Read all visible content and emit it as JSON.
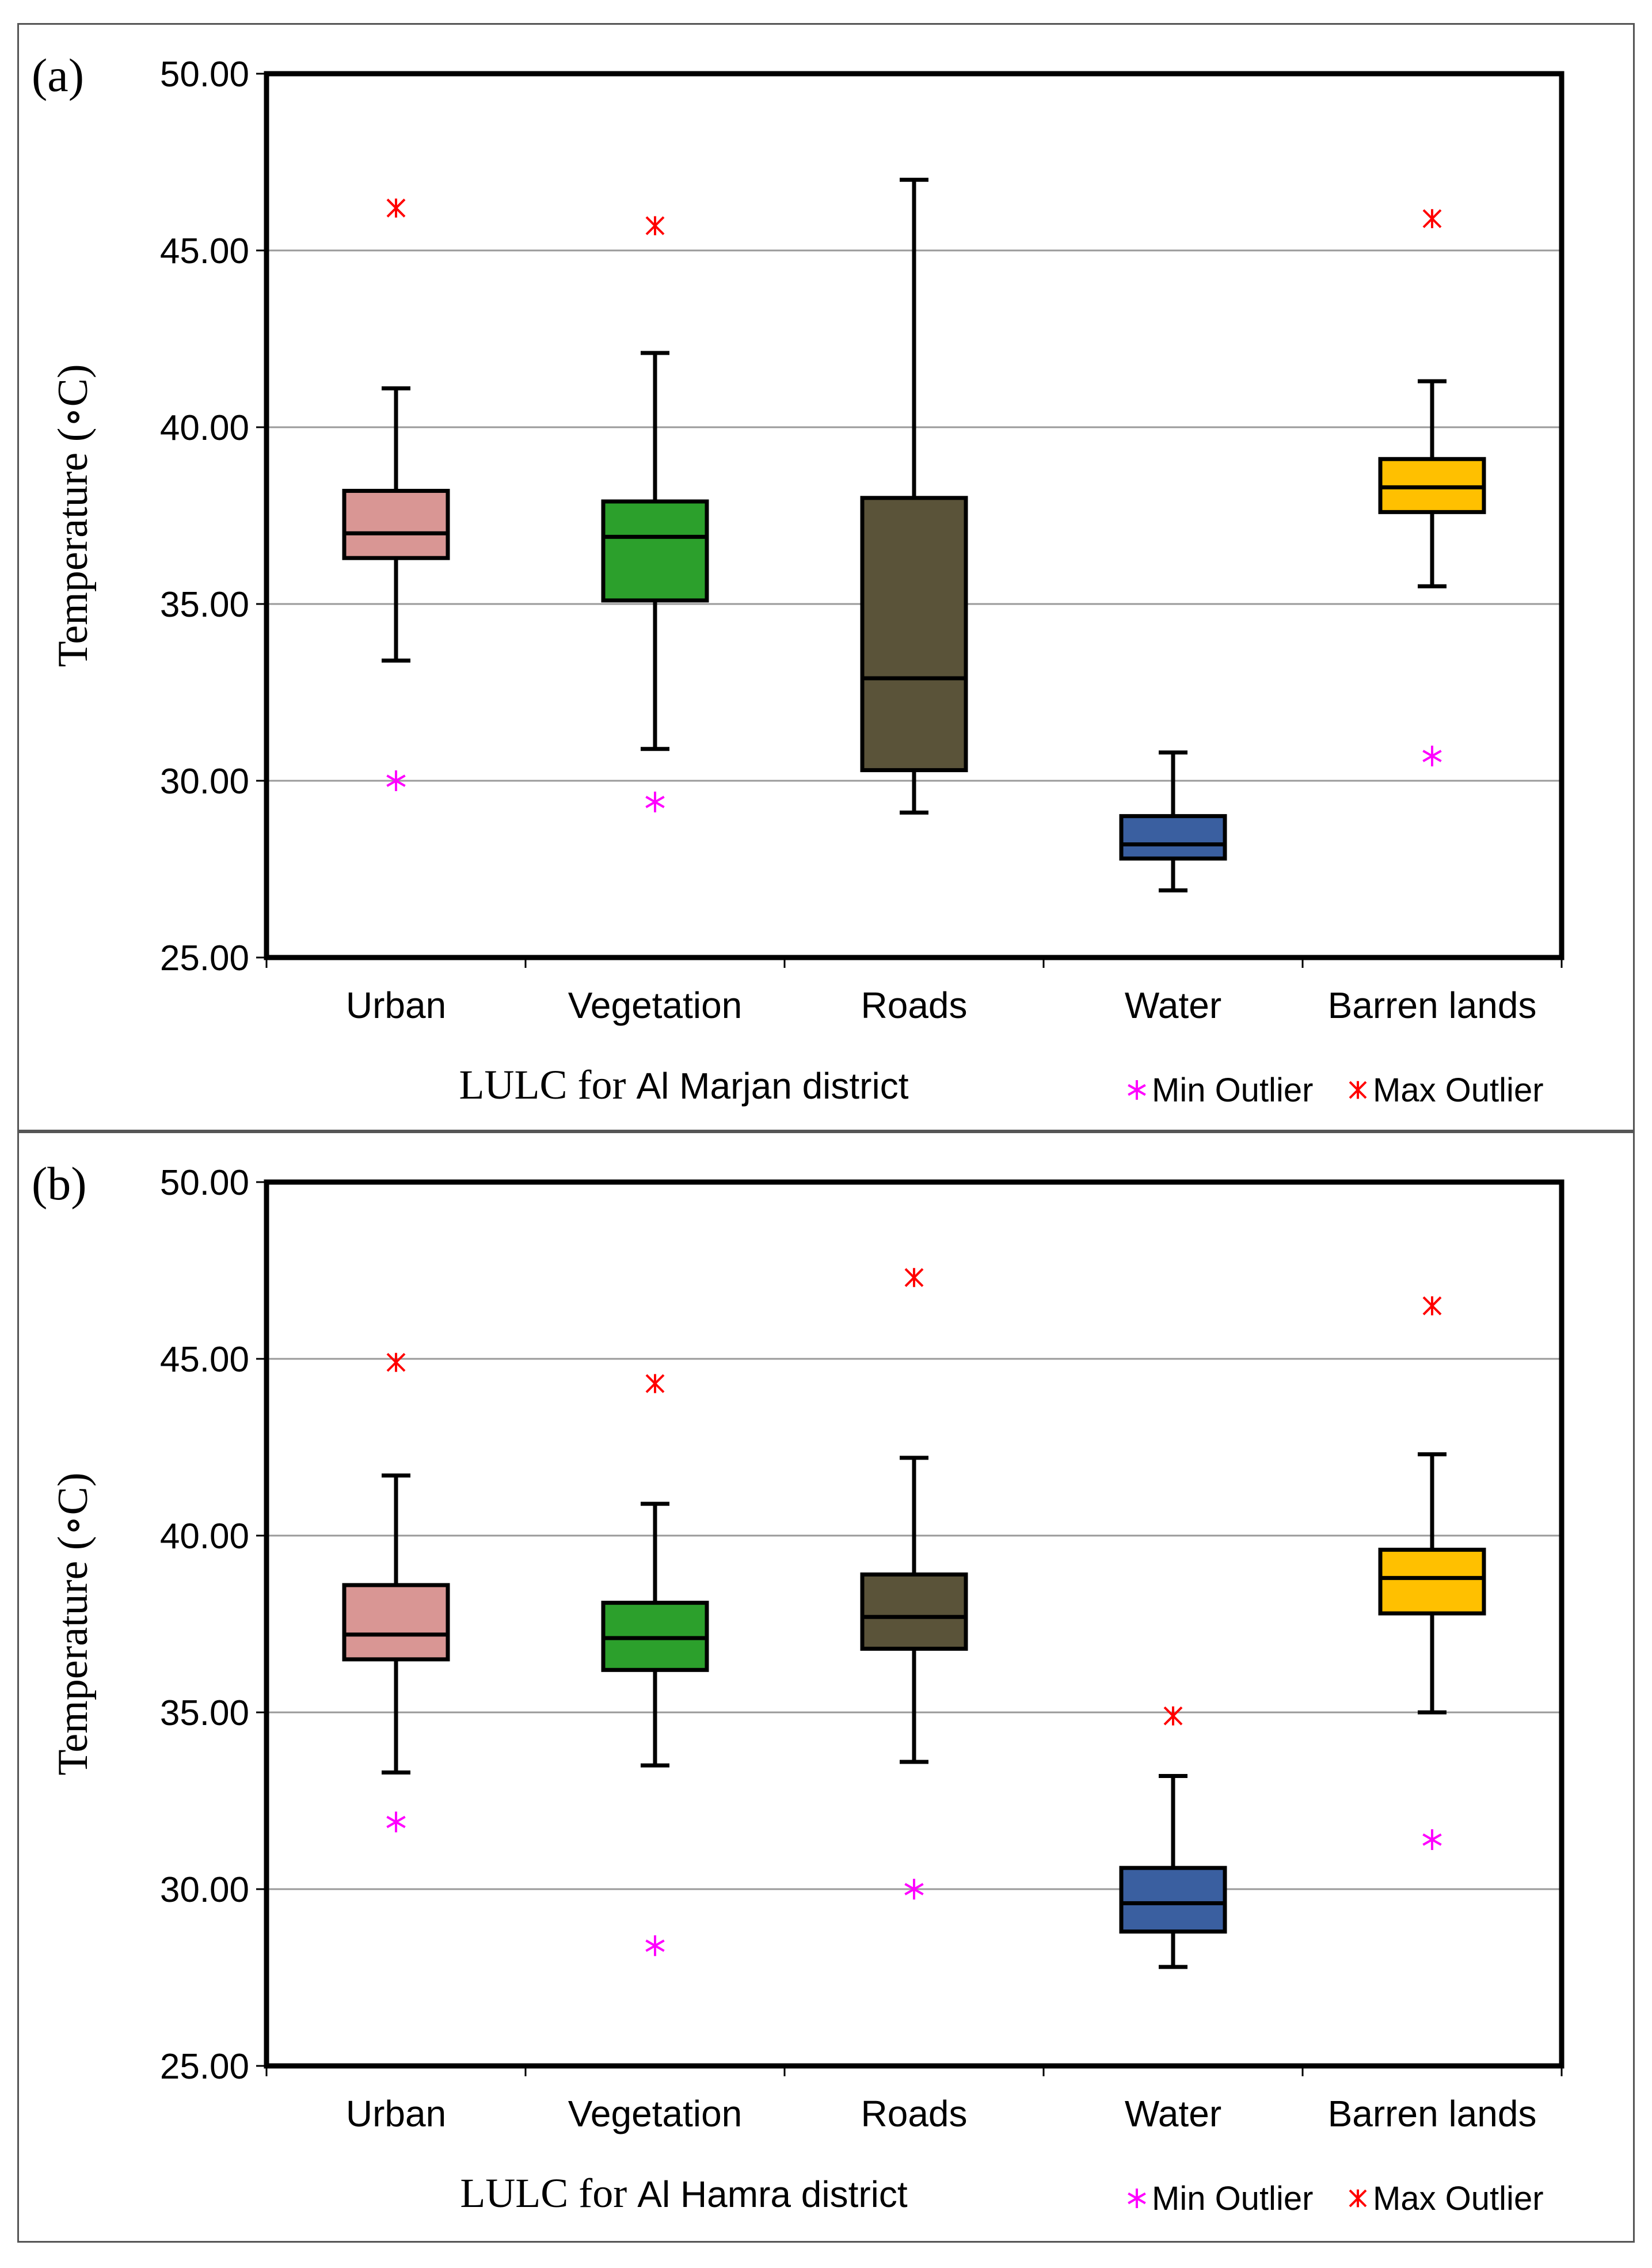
{
  "chart_data": [
    {
      "type": "box",
      "panel_label": "(a)",
      "xlabel_prefix": "LULC for",
      "xlabel_district": "Al Marjan district",
      "ylabel": "Temperature (∘C)",
      "ylim": [
        25,
        50
      ],
      "yticks": [
        "25.00",
        "30.00",
        "35.00",
        "40.00",
        "45.00",
        "50.00"
      ],
      "grid": true,
      "categories": [
        "Urban",
        "Vegetation",
        "Roads",
        "Water",
        "Barren lands"
      ],
      "colors": [
        "#d99694",
        "#2ca02c",
        "#5a5339",
        "#3a5fa0",
        "#ffc000"
      ],
      "series": [
        {
          "name": "Urban",
          "whisker_low": 33.4,
          "q1": 36.3,
          "median": 37.0,
          "q3": 38.2,
          "whisker_high": 41.1,
          "min_outlier": 30.0,
          "max_outlier": 46.2
        },
        {
          "name": "Vegetation",
          "whisker_low": 30.9,
          "q1": 35.1,
          "median": 36.9,
          "q3": 37.9,
          "whisker_high": 42.1,
          "min_outlier": 29.4,
          "max_outlier": 45.7
        },
        {
          "name": "Roads",
          "whisker_low": 29.1,
          "q1": 30.3,
          "median": 32.9,
          "q3": 38.0,
          "whisker_high": 47.0,
          "min_outlier": null,
          "max_outlier": null
        },
        {
          "name": "Water",
          "whisker_low": 26.9,
          "q1": 27.8,
          "median": 28.2,
          "q3": 29.0,
          "whisker_high": 30.8,
          "min_outlier": null,
          "max_outlier": null
        },
        {
          "name": "Barren lands",
          "whisker_low": 35.5,
          "q1": 37.6,
          "median": 38.3,
          "q3": 39.1,
          "whisker_high": 41.3,
          "min_outlier": 30.7,
          "max_outlier": 45.9
        }
      ],
      "legend": {
        "position": "bottom-right",
        "min_label": "Min Outlier",
        "max_label": "Max Outlier",
        "min_color": "#ff00ff",
        "max_color": "#ff0000"
      }
    },
    {
      "type": "box",
      "panel_label": "(b)",
      "xlabel_prefix": "LULC for",
      "xlabel_district": "Al Hamra district",
      "ylabel": "Temperature (∘C)",
      "ylim": [
        25,
        50
      ],
      "yticks": [
        "25.00",
        "30.00",
        "35.00",
        "40.00",
        "45.00",
        "50.00"
      ],
      "grid": true,
      "categories": [
        "Urban",
        "Vegetation",
        "Roads",
        "Water",
        "Barren lands"
      ],
      "colors": [
        "#d99694",
        "#2ca02c",
        "#5a5339",
        "#3a5fa0",
        "#ffc000"
      ],
      "series": [
        {
          "name": "Urban",
          "whisker_low": 33.3,
          "q1": 36.5,
          "median": 37.2,
          "q3": 38.6,
          "whisker_high": 41.7,
          "min_outlier": 31.9,
          "max_outlier": 44.9
        },
        {
          "name": "Vegetation",
          "whisker_low": 33.5,
          "q1": 36.2,
          "median": 37.1,
          "q3": 38.1,
          "whisker_high": 40.9,
          "min_outlier": 28.4,
          "max_outlier": 44.3
        },
        {
          "name": "Roads",
          "whisker_low": 33.6,
          "q1": 36.8,
          "median": 37.7,
          "q3": 38.9,
          "whisker_high": 42.2,
          "min_outlier": 30.0,
          "max_outlier": 47.3
        },
        {
          "name": "Water",
          "whisker_low": 27.8,
          "q1": 28.8,
          "median": 29.6,
          "q3": 30.6,
          "whisker_high": 33.2,
          "min_outlier": null,
          "max_outlier": 34.9
        },
        {
          "name": "Barren lands",
          "whisker_low": 35.0,
          "q1": 37.8,
          "median": 38.8,
          "q3": 39.6,
          "whisker_high": 42.3,
          "min_outlier": 31.4,
          "max_outlier": 46.5
        }
      ],
      "legend": {
        "position": "bottom-right",
        "min_label": "Min Outlier",
        "max_label": "Max Outlier",
        "min_color": "#ff00ff",
        "max_color": "#ff0000"
      }
    }
  ]
}
